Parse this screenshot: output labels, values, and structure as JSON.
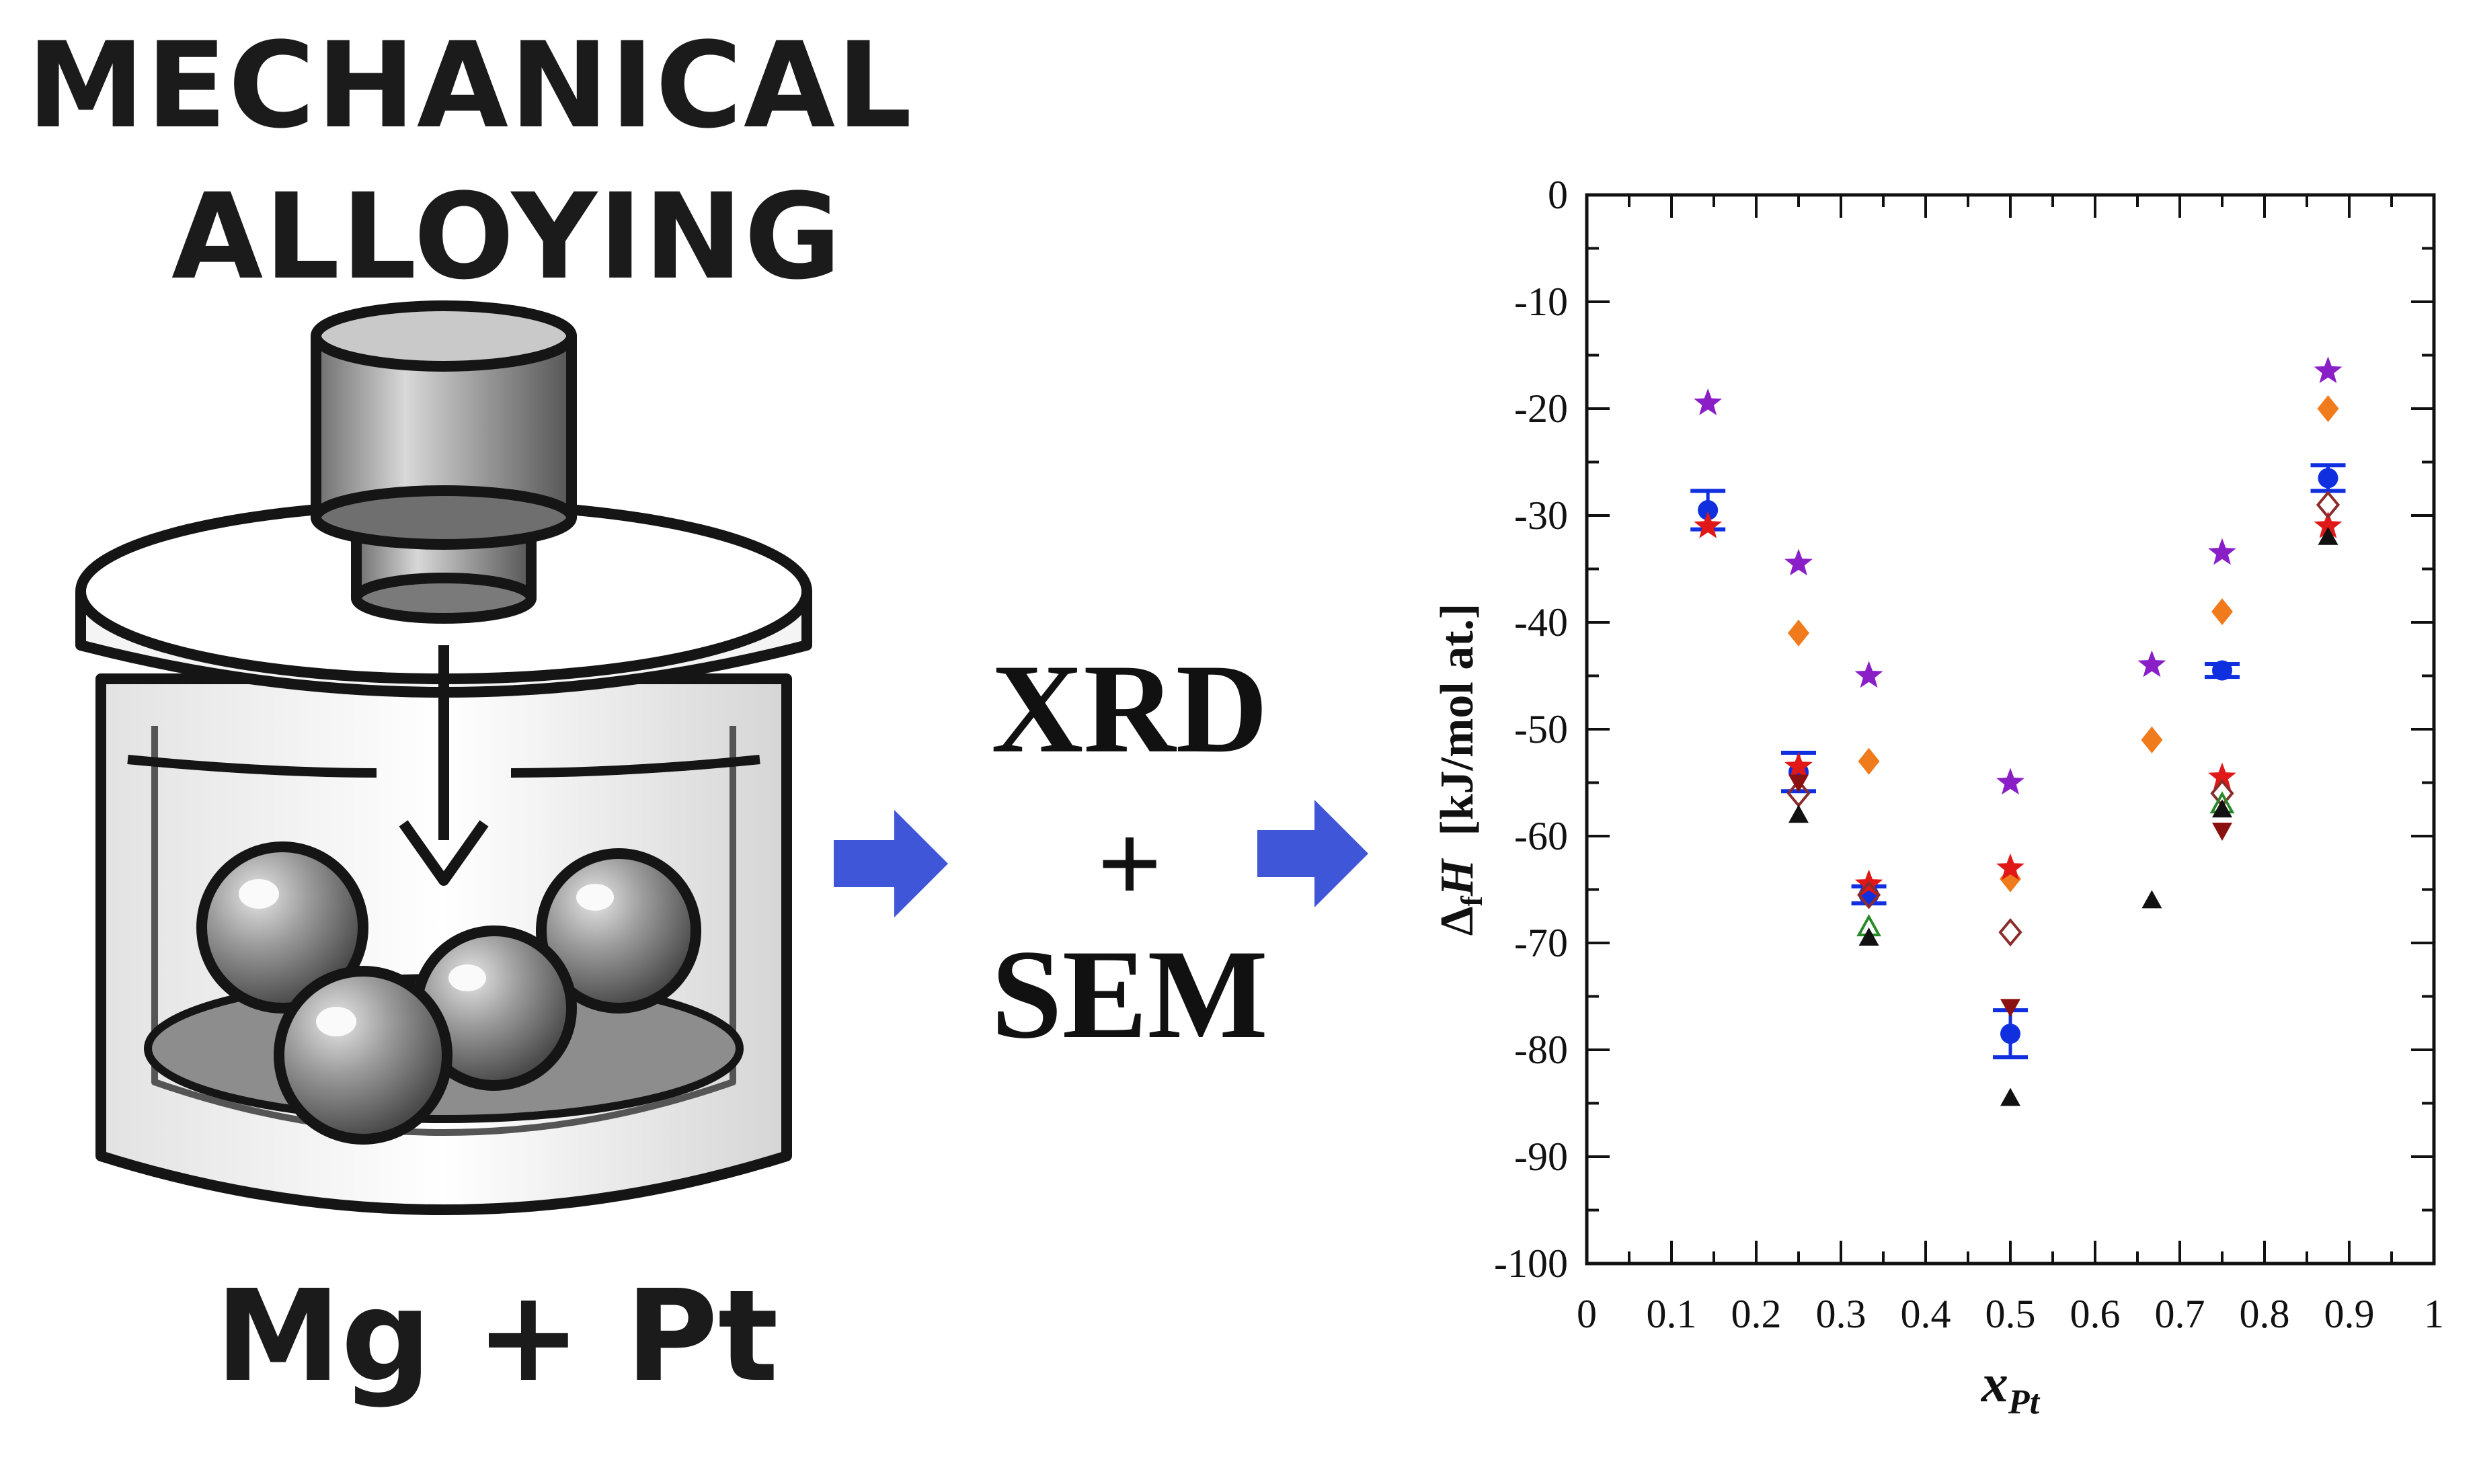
{
  "illustration": {
    "title_line1": "MECHANICAL",
    "title_line2": "ALLOYING",
    "formula": "Mg + Pt",
    "icon": "ball-mill-vial-icon"
  },
  "process": {
    "step1": "XRD",
    "plus": "+",
    "step2": "SEM",
    "arrow_color": "#4056d8"
  },
  "chart_data": {
    "type": "scatter",
    "xlabel": "x",
    "xlabel_sub": "Pt",
    "ylabel_main": "Δ",
    "ylabel_sub": "f",
    "ylabel_var": "H",
    "ylabel_unit": "  [kJ/mol at.]",
    "xlim": [
      0,
      1
    ],
    "ylim": [
      -100,
      0
    ],
    "xticks": [
      "0",
      "0.1",
      "0.2",
      "0.3",
      "0.4",
      "0.5",
      "0.6",
      "0.7",
      "0.8",
      "0.9",
      "1"
    ],
    "yticks": [
      "0",
      "-10",
      "-20",
      "-30",
      "-40",
      "-50",
      "-60",
      "-70",
      "-80",
      "-90",
      "-100"
    ],
    "grid": false,
    "series": [
      {
        "marker": "star",
        "color": "#8a1fc8",
        "x": [
          0.143,
          0.25,
          0.333,
          0.5,
          0.667,
          0.75,
          0.875
        ],
        "y": [
          -19.5,
          -34.5,
          -45,
          -55,
          -44,
          -33.5,
          -16.5
        ]
      },
      {
        "marker": "diamond",
        "color": "#f07b1c",
        "x": [
          0.25,
          0.333,
          0.5,
          0.667,
          0.75,
          0.875
        ],
        "y": [
          -41,
          -53,
          -64,
          -51,
          -39,
          -20
        ]
      },
      {
        "marker": "circle-errorbar",
        "color": "#1030e0",
        "x": [
          0.143,
          0.25,
          0.333,
          0.5,
          0.75,
          0.875
        ],
        "y": [
          -29.5,
          -54,
          -65.5,
          -78.5,
          -44.5,
          -26.5
        ],
        "err": [
          1.8,
          1.8,
          0.8,
          2.2,
          0.6,
          1.2
        ]
      },
      {
        "marker": "star",
        "color": "#e01818",
        "x": [
          0.143,
          0.25,
          0.333,
          0.5,
          0.75,
          0.875
        ],
        "y": [
          -31,
          -53.5,
          -64.5,
          -63,
          -54.5,
          -31
        ]
      },
      {
        "marker": "diamond-open",
        "color": "#8b2b2b",
        "x": [
          0.25,
          0.333,
          0.5,
          0.75,
          0.875
        ],
        "y": [
          -56,
          -65.5,
          -69,
          -56,
          -29
        ]
      },
      {
        "marker": "triangle-down",
        "color": "#8b1010",
        "x": [
          0.25,
          0.5,
          0.75
        ],
        "y": [
          -55,
          -76,
          -59.5
        ]
      },
      {
        "marker": "triangle-open",
        "color": "#2a8a2a",
        "x": [
          0.333,
          0.75
        ],
        "y": [
          -68.5,
          -57
        ]
      },
      {
        "marker": "triangle",
        "color": "#111111",
        "x": [
          0.25,
          0.333,
          0.5,
          0.667,
          0.75,
          0.875
        ],
        "y": [
          -58,
          -69.5,
          -84.5,
          -66,
          -57.5,
          -32
        ]
      }
    ]
  }
}
